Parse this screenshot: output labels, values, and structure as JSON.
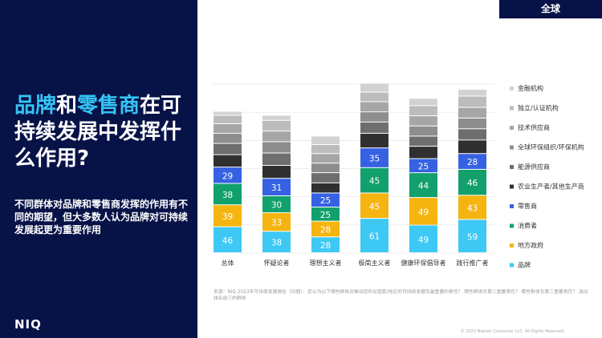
{
  "header": {
    "region_tag": "全球"
  },
  "headline": {
    "part1": "品牌",
    "part2": "和",
    "part3": "零售商",
    "part4": "在可持续发展中发挥什么作用?"
  },
  "subhead": "不同群体对品牌和零售商发挥的作用有不同的期望，但大多数人认为品牌对可持续发展起更为重要作用",
  "logo": "NIQ",
  "footer": {
    "source": "来源：NIQ 2023年可持续发展报告（问题）：您认为以下哪些群体对推动您所在国家/地区的可持续发展负最重要的责任？ 哪些群体负第二重要责任？ 哪些群体负第三重要责任？ 选出排名前三的群体",
    "copyright": "© 2023 Nielsen Consumer LLC. All Rights Reserved."
  },
  "colors": {
    "brand": "#3ec8f4",
    "gov": "#f5b40f",
    "consumer": "#12a06c",
    "retailer": "#3561e2",
    "agri": "#303030",
    "energy": "#6e6e6e",
    "ngo": "#8e8e8e",
    "tech": "#a6a6a6",
    "cert": "#bcbcbc",
    "finance": "#d2d2d2"
  },
  "chart_data": {
    "type": "bar",
    "stacked": true,
    "categories": [
      "总体",
      "怀疑论者",
      "理想主义者",
      "极简主义者",
      "健康环保倡导者",
      "践行推广者"
    ],
    "series": [
      {
        "key": "brand",
        "name": "品牌",
        "values": [
          46,
          38,
          28,
          61,
          49,
          59
        ],
        "show_labels": true
      },
      {
        "key": "gov",
        "name": "地方政府",
        "values": [
          39,
          33,
          28,
          45,
          49,
          43
        ],
        "show_labels": true
      },
      {
        "key": "consumer",
        "name": "消费者",
        "values": [
          38,
          30,
          25,
          45,
          44,
          46
        ],
        "show_labels": true
      },
      {
        "key": "retailer",
        "name": "零售商",
        "values": [
          29,
          31,
          25,
          35,
          25,
          28
        ],
        "show_labels": true
      },
      {
        "key": "agri",
        "name": "农业生产者/其他生产商",
        "values": [
          22,
          23,
          18,
          26,
          22,
          24
        ],
        "show_labels": false
      },
      {
        "key": "energy",
        "name": "能源供应商",
        "values": [
          20,
          22,
          18,
          20,
          18,
          20
        ],
        "show_labels": false
      },
      {
        "key": "ngo",
        "name": "全球环保组织/环保机构",
        "values": [
          18,
          20,
          17,
          18,
          18,
          19
        ],
        "show_labels": false
      },
      {
        "key": "tech",
        "name": "技术供应商",
        "values": [
          17,
          19,
          17,
          18,
          18,
          19
        ],
        "show_labels": false
      },
      {
        "key": "cert",
        "name": "独立/认证机构",
        "values": [
          15,
          19,
          16,
          17,
          18,
          20
        ],
        "show_labels": false
      },
      {
        "key": "finance",
        "name": "金融机构",
        "values": [
          7,
          9,
          15,
          16,
          13,
          12
        ],
        "show_labels": false
      }
    ],
    "legend_order": [
      "finance",
      "cert",
      "tech",
      "ngo",
      "energy",
      "agri",
      "retailer",
      "consumer",
      "gov",
      "brand"
    ],
    "legend_position": "right",
    "ylim": [
      0,
      310
    ],
    "gridlines": true
  }
}
